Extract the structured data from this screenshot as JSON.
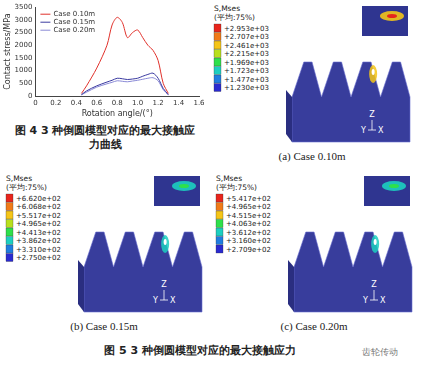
{
  "chart_data": {
    "type": "line",
    "xlabel": "Rotation angle/(°)",
    "ylabel": "Contact stress/MPa",
    "x": [
      0.45,
      0.5,
      0.6,
      0.7,
      0.75,
      0.8,
      0.85,
      0.9,
      0.95,
      1.0,
      1.05,
      1.1,
      1.15,
      1.2,
      1.25,
      1.3
    ],
    "series": [
      {
        "name": "Case 0.10m",
        "color": "#e0302a",
        "values": [
          100,
          400,
          1100,
          2000,
          2800,
          3100,
          2900,
          2300,
          2500,
          2600,
          2300,
          2000,
          1800,
          1400,
          500,
          100
        ]
      },
      {
        "name": "Case 0.15m",
        "color": "#3a3aa0",
        "values": [
          50,
          200,
          400,
          550,
          620,
          700,
          680,
          650,
          670,
          700,
          780,
          850,
          900,
          700,
          300,
          50
        ]
      },
      {
        "name": "Case 0.20m",
        "color": "#8a8ad6",
        "values": [
          50,
          150,
          350,
          480,
          540,
          600,
          580,
          560,
          590,
          620,
          660,
          700,
          720,
          600,
          250,
          50
        ]
      }
    ],
    "xlim": [
      0,
      1.6
    ],
    "xticks": [
      0,
      0.2,
      0.4,
      0.6,
      0.8,
      {
        "value": 1,
        "label": "1.0"
      },
      1.2,
      1.4,
      1.6
    ],
    "ylim": [
      0,
      3500
    ],
    "yticks": [
      0,
      500,
      1000,
      1500,
      2000,
      2500,
      3000,
      3500
    ],
    "grid": false,
    "legend": "upper left"
  },
  "figure4": {
    "caption": "图 4  3 种倒圆模型对应的最大接触应力曲线"
  },
  "figure5": {
    "caption": "图 5  3 种倒圆模型对应的最大接触应力",
    "panels": [
      {
        "label": "(a) Case 0.10m",
        "legend_title": "S,Mses",
        "legend_subtitle": "(平均:75%)",
        "levels": [
          "+2.953e+03",
          "+2.707e+03",
          "+2.461e+03",
          "+2.215e+03",
          "+1.969e+03",
          "+1.723e+03",
          "+1.477e+03",
          "+1.230e+03"
        ],
        "axes": [
          "Z",
          "Y",
          "X"
        ]
      },
      {
        "label": "(b) Case 0.15m",
        "legend_title": "S,Mses",
        "legend_subtitle": "(平均:75%)",
        "levels": [
          "+6.620e+02",
          "+6.068e+02",
          "+5.517e+02",
          "+4.965e+02",
          "+4.413e+02",
          "+3.862e+02",
          "+3.310e+02",
          "+2.750e+02"
        ],
        "axes": [
          "Z",
          "Y",
          "X"
        ]
      },
      {
        "label": "(c) Case 0.20m",
        "legend_title": "S,Mses",
        "legend_subtitle": "(平均:75%)",
        "levels": [
          "+5.417e+02",
          "+4.965e+02",
          "+4.515e+02",
          "+4.063e+02",
          "+3.612e+02",
          "+3.160e+02",
          "+2.709e+02"
        ],
        "axes": [
          "Z",
          "Y",
          "X"
        ]
      }
    ]
  },
  "watermark": "齿轮传动"
}
